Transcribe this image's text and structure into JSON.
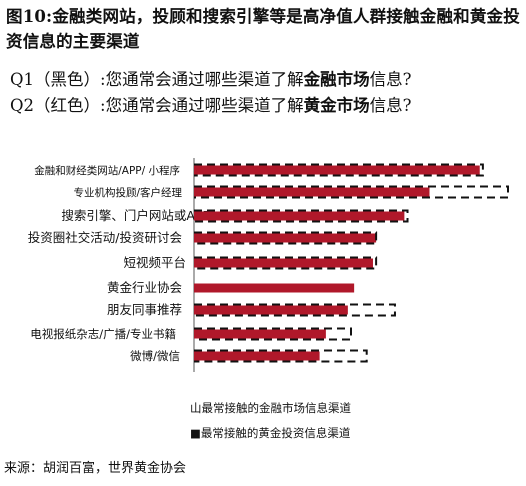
{
  "title": "图10:金融类网站，投顾和搜索引擎等是高净值人群接触金融和黄金投资信息的主要渠道",
  "q1": {
    "prefix": "Q1（黑色）:您通常会通过哪些渠道了解",
    "highlight": "金融市场",
    "suffix": "信息?"
  },
  "q2": {
    "prefix": "Q2（红色）:您通常会通过哪些渠道了解",
    "highlight": "黄金市场",
    "suffix": "信息?"
  },
  "chart_data": {
    "type": "bar",
    "orientation": "horizontal",
    "categories": [
      "金融和财经类网站/APP/ 小程序",
      "专业机构投顾/客户经理",
      "搜索引擎、门户网站或APP",
      "投资圈社交活动/投资研讨会",
      "短视频平台",
      "黄金行业协会",
      "朋友同事推荐",
      "电视报纸杂志/广播/专业书籍",
      "微博/微信"
    ],
    "series": [
      {
        "name": "最常接触的金融市场信息渠道",
        "color": "#111111",
        "style": "dashed-outline",
        "values": [
          92,
          100,
          68,
          58,
          58,
          0,
          64,
          50,
          55
        ]
      },
      {
        "name": "最常接触的黄金投资信息渠道",
        "color": "#b0182a",
        "style": "solid",
        "values": [
          91,
          75,
          67,
          58,
          57,
          51,
          49,
          42,
          40
        ]
      }
    ],
    "xlim": [
      0,
      100
    ],
    "legend_position": "bottom",
    "grid": false
  },
  "legend": {
    "item1": "山最常接触的金融市场信息渠道",
    "item2": "■最常接触的黄金投资信息渠道"
  },
  "source": "来源：胡润百富，世界黄金协会"
}
